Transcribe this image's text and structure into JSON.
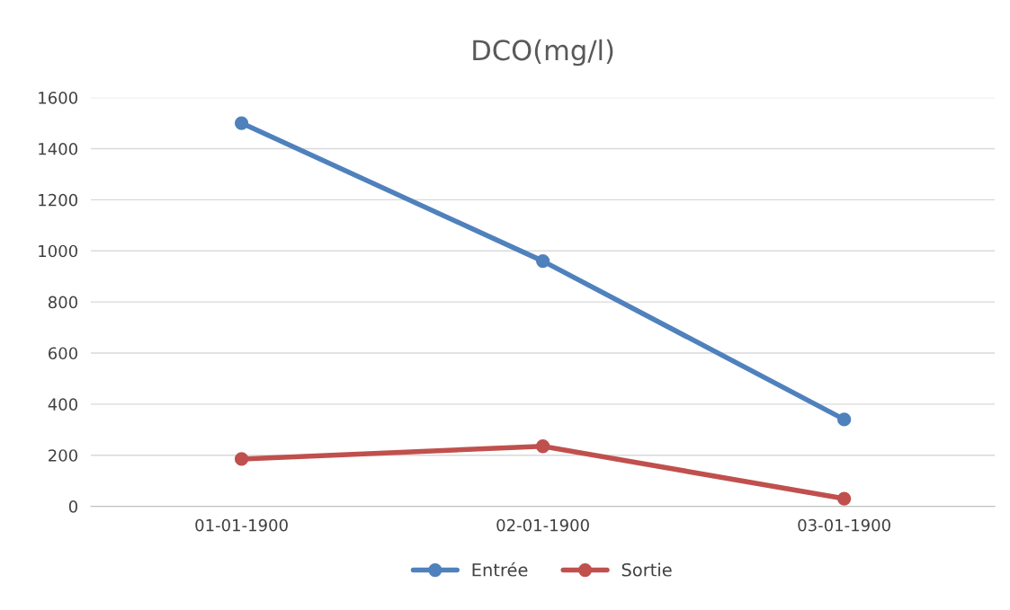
{
  "chart_data": {
    "type": "line",
    "title": "DCO(mg/l)",
    "categories": [
      "01-01-1900",
      "02-01-1900",
      "03-01-1900"
    ],
    "series": [
      {
        "name": "Entrée",
        "color": "#4f81bd",
        "values": [
          1500,
          960,
          340
        ]
      },
      {
        "name": "Sortie",
        "color": "#c0504d",
        "values": [
          185,
          235,
          30
        ]
      }
    ],
    "ylim": [
      0,
      1600
    ],
    "yticks": [
      0,
      200,
      400,
      600,
      800,
      1000,
      1200,
      1400,
      1600
    ],
    "grid": "y",
    "legend": "bottom",
    "marker": "circle",
    "line_style": "solid"
  }
}
